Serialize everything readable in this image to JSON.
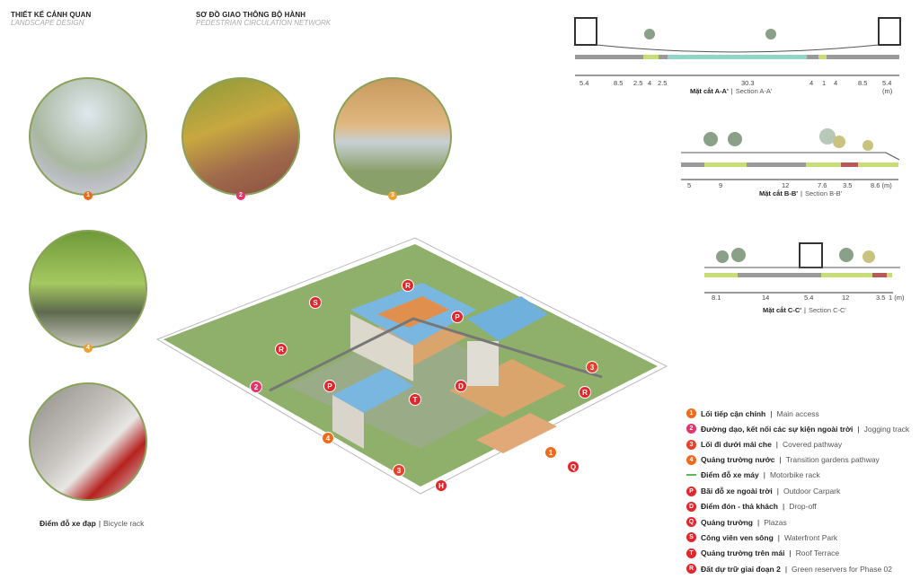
{
  "headers": [
    {
      "vi": "THIẾT KẾ CẢNH QUAN",
      "en": "LANDSCAPE DESIGN"
    },
    {
      "vi": "SƠ ĐỒ GIAO THÔNG BỘ HÀNH",
      "en": "PEDESTRIAN CIRCULATION NETWORK"
    }
  ],
  "photos": [
    {
      "badge": "1",
      "color": "#f06a1c"
    },
    {
      "badge": "2",
      "color": "#e5336b"
    },
    {
      "badge": "3",
      "color": "#f0a030"
    },
    {
      "badge": "4",
      "color": "#f0a030"
    },
    {
      "badge": ""
    }
  ],
  "bicycle_caption": {
    "vi": "Điểm đỗ xe đạp",
    "en": "Bicycle rack"
  },
  "sections": {
    "a": {
      "vi": "Mặt cắt A-A'",
      "en": "Section A-A'",
      "dims": [
        "5.4",
        "8.5",
        "2.5",
        "4",
        "2.5",
        "30.3",
        "4",
        "1",
        "4",
        "8.5",
        "5.4 (m)"
      ]
    },
    "b": {
      "vi": "Mặt cắt B-B'",
      "en": "Section B-B'",
      "dims": [
        "5",
        "9",
        "12",
        "7.6",
        "3.5",
        "8.6 (m)"
      ]
    },
    "c": {
      "vi": "Mặt cắt C-C'",
      "en": "Section C-C'",
      "dims": [
        "8.1",
        "14",
        "5.4",
        "12",
        "3.5",
        "1 (m)"
      ]
    }
  },
  "site_markers": [
    "S",
    "R",
    "P",
    "R",
    "2",
    "P",
    "T",
    "D",
    "3",
    "R",
    "4",
    "3",
    "H",
    "1",
    "Q"
  ],
  "legend": [
    {
      "mark": "1",
      "color": "#f06a1c",
      "vi": "Lối tiếp cận chính",
      "en": "Main access"
    },
    {
      "mark": "2",
      "color": "#e5336b",
      "vi": "Đường dạo, kết nối các sự kiện ngoài  trời",
      "en": "Jogging track"
    },
    {
      "mark": "3",
      "color": "#e8402a",
      "vi": "Lối đi dưới mái che",
      "en": "Covered pathway"
    },
    {
      "mark": "4",
      "color": "#f06a1c",
      "vi": "Quảng trường nước",
      "en": "Transition gardens pathway"
    },
    {
      "mark": "",
      "color": "#5cb85c",
      "vi": "Điểm đỗ xe máy",
      "en": "Motorbike rack"
    },
    {
      "mark": "P",
      "color": "#e3262b",
      "vi": "Bãi đỗ xe ngoài trời",
      "en": "Outdoor Carpark"
    },
    {
      "mark": "D",
      "color": "#e3262b",
      "vi": "Điểm đón - thả khách",
      "en": "Drop-off"
    },
    {
      "mark": "Q",
      "color": "#e3262b",
      "vi": "Quảng trường",
      "en": "Plazas"
    },
    {
      "mark": "S",
      "color": "#e3262b",
      "vi": "Công viên ven sông",
      "en": "Waterfront Park"
    },
    {
      "mark": "T",
      "color": "#e3262b",
      "vi": "Quảng trường trên mái",
      "en": "Roof Terrace"
    },
    {
      "mark": "R",
      "color": "#e3262b",
      "vi": "Đất dự trữ giai đoạn 2",
      "en": "Green reservers for Phase 02"
    }
  ],
  "colors": {
    "road": "#9a9a9a",
    "green": "#c8dc78",
    "water": "#8fd6c6",
    "bike": "#b85a5a",
    "frame": "#8aa25a"
  }
}
